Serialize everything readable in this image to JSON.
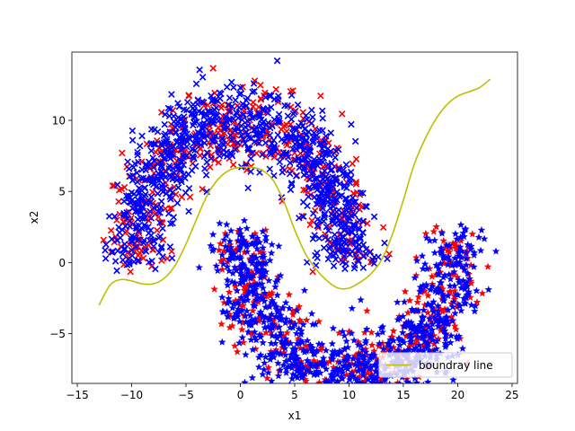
{
  "chart_data": {
    "type": "scatter",
    "title": "",
    "xlabel": "x1",
    "ylabel": "x2",
    "xlim": [
      -15.5,
      25.5
    ],
    "ylim": [
      -8.5,
      14.8
    ],
    "xticks": [
      -15,
      -10,
      -5,
      0,
      5,
      10,
      15,
      20,
      25
    ],
    "yticks": [
      -5,
      0,
      5,
      10
    ],
    "grid": false,
    "legend": {
      "position": "lower-right",
      "entries": [
        "boundray line"
      ]
    },
    "colors": {
      "red": "#ff0000",
      "blue": "#0000ff",
      "boundary": "#bfbf00"
    },
    "moons": {
      "upper": {
        "center": [
          0,
          0
        ],
        "radius": 10,
        "angle_range": [
          0,
          180
        ],
        "noise": 1.5
      },
      "lower": {
        "center": [
          10,
          2
        ],
        "radius": 10,
        "angle_range": [
          180,
          360
        ],
        "noise": 1.5
      }
    },
    "series": [
      {
        "marker": "x",
        "color": "#ff0000",
        "region": "upper",
        "count": 420
      },
      {
        "marker": "x",
        "color": "#0000ff",
        "region": "upper",
        "count": 900
      },
      {
        "marker": "star",
        "color": "#ff0000",
        "region": "lower",
        "count": 420
      },
      {
        "marker": "star",
        "color": "#0000ff",
        "region": "lower",
        "count": 900
      }
    ],
    "boundary": {
      "name": "boundray line",
      "x": [
        -13,
        -12,
        -11,
        -10,
        -9,
        -8,
        -7,
        -6,
        -5,
        -4,
        -3,
        -2,
        -1,
        0,
        1,
        2,
        3,
        4,
        5,
        6,
        7,
        8,
        9,
        10,
        11,
        12,
        13,
        14,
        15,
        16,
        17,
        18,
        19,
        20,
        21,
        22,
        23
      ],
      "y": [
        -3.0,
        -1.6,
        -1.2,
        -1.3,
        -1.5,
        -1.5,
        -1.1,
        -0.2,
        1.3,
        3.1,
        4.8,
        5.9,
        6.5,
        6.7,
        6.7,
        6.5,
        5.8,
        4.3,
        2.3,
        0.6,
        -0.5,
        -1.3,
        -1.8,
        -1.8,
        -1.4,
        -0.8,
        0.2,
        2.0,
        4.4,
        6.9,
        8.7,
        10.1,
        11.1,
        11.7,
        12.0,
        12.3,
        12.9
      ]
    }
  }
}
